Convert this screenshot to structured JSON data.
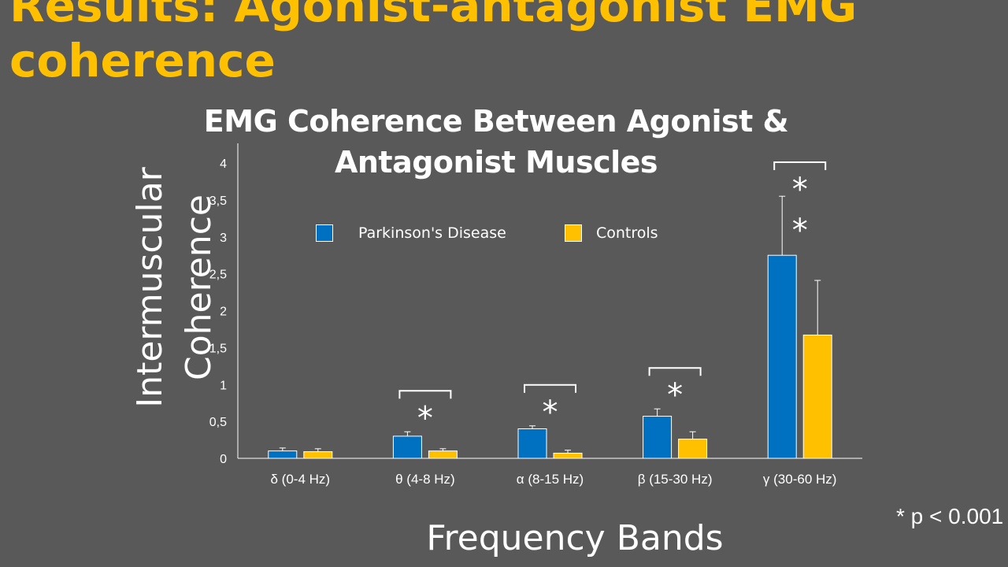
{
  "slide": {
    "title": "Results: Agonist-antagonist EMG coherence",
    "footnote": "* p < 0.001"
  },
  "colors": {
    "background": "#595959",
    "title": "#FFC000",
    "parkinsons": "#0070C0",
    "controls": "#FFC000",
    "text": "#FFFFFF"
  },
  "chart_data": {
    "type": "bar",
    "title": "EMG Coherence Between Agonist & Antagonist Muscles",
    "xlabel": "Frequency Bands",
    "ylabel": "Intermuscular Coherence",
    "categories": [
      "δ (0-4 Hz)",
      "θ (4-8 Hz)",
      "α (8-15 Hz)",
      "β (15-30 Hz)",
      "γ (30-60 Hz)"
    ],
    "series": [
      {
        "name": "Parkinson's Disease",
        "values": [
          0.1,
          0.3,
          0.4,
          0.57,
          2.75
        ],
        "errors": [
          0.04,
          0.06,
          0.04,
          0.1,
          0.8
        ]
      },
      {
        "name": "Controls",
        "values": [
          0.09,
          0.1,
          0.07,
          0.26,
          1.67
        ],
        "errors": [
          0.04,
          0.03,
          0.04,
          0.1,
          0.74
        ]
      }
    ],
    "ylim": [
      0,
      4
    ],
    "yticks": [
      "0",
      "0,5",
      "1",
      "1,5",
      "2",
      "2,5",
      "3",
      "3,5",
      "4"
    ],
    "legend_position": "top",
    "grid": false,
    "significance": [
      {
        "category": "θ (4-8 Hz)",
        "mark": "*"
      },
      {
        "category": "α (8-15 Hz)",
        "mark": "*"
      },
      {
        "category": "β (15-30 Hz)",
        "mark": "*"
      },
      {
        "category": "γ (30-60 Hz)",
        "mark": "* *"
      }
    ]
  }
}
